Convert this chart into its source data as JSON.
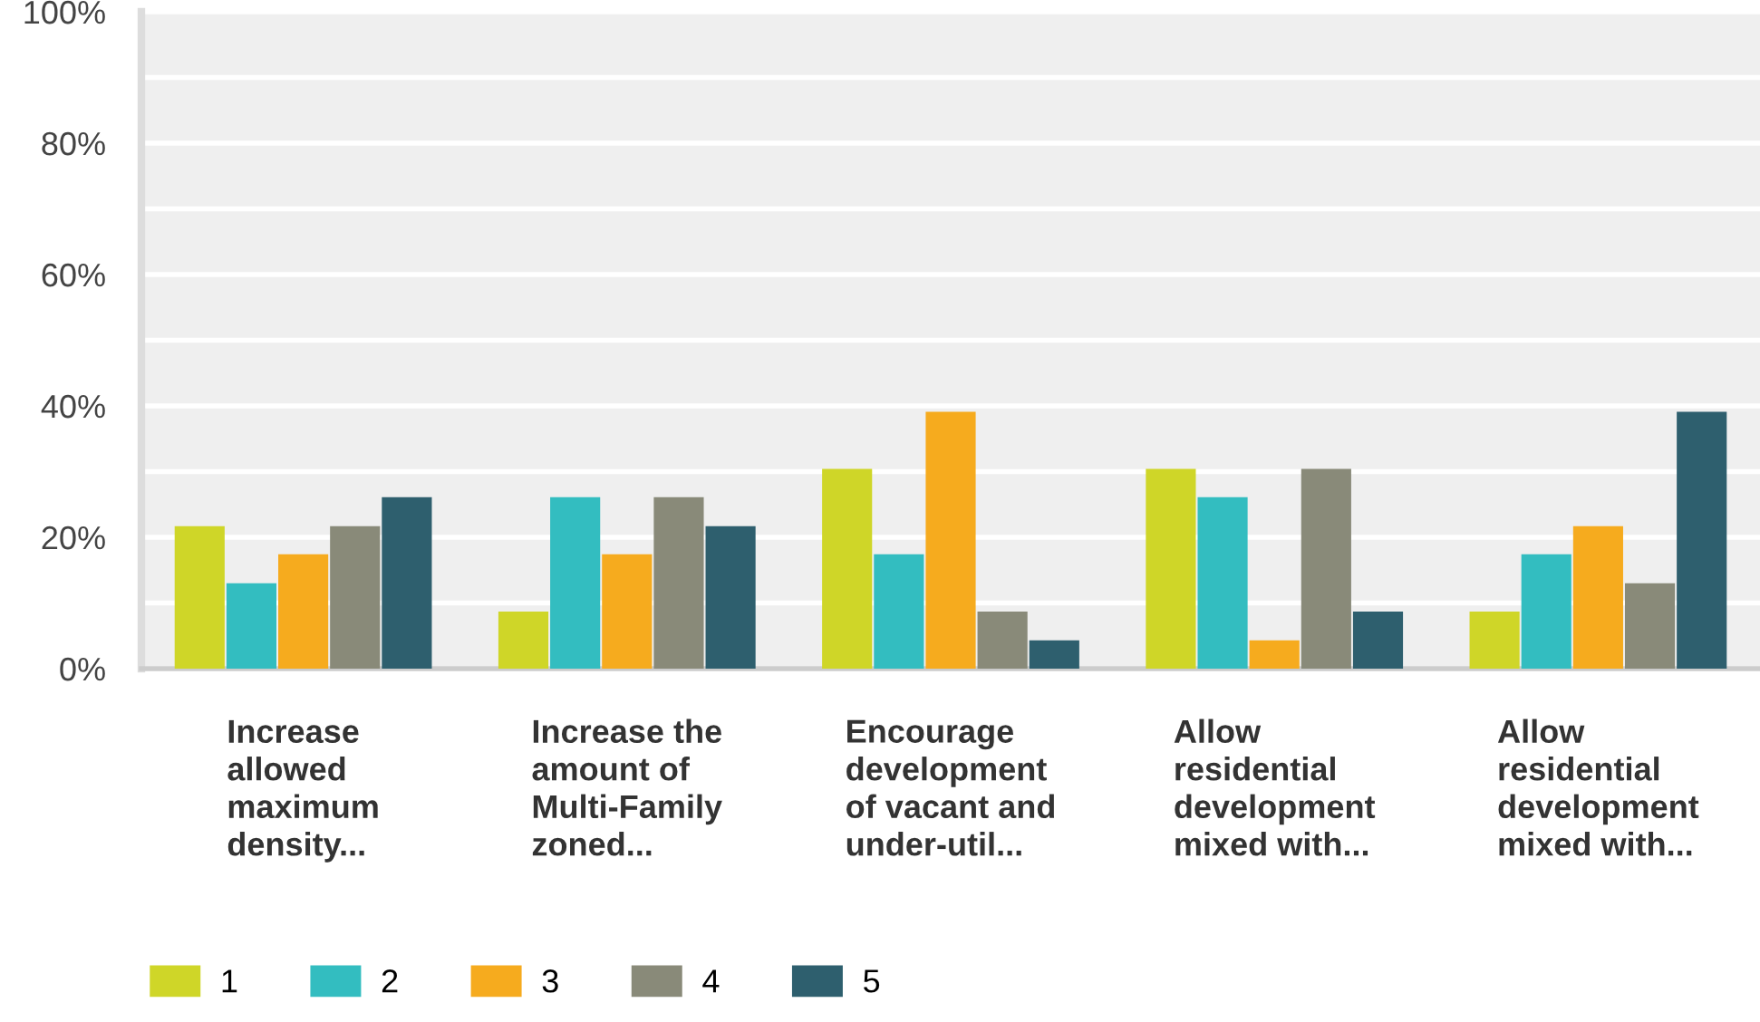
{
  "chart_data": {
    "type": "bar",
    "categories": [
      "Increase\nallowed\nmaximum\ndensity...",
      "Increase the\namount of\nMulti-Family\nzoned...",
      "Encourage\ndevelopment\nof vacant and\nunder-util...",
      "Allow\nresidential\ndevelopment\nmixed with...",
      "Allow\nresidential\ndevelopment\nmixed with..."
    ],
    "series": [
      {
        "name": "1",
        "color": "#cfd628",
        "values": [
          21.7,
          8.7,
          30.4,
          30.4,
          8.7
        ]
      },
      {
        "name": "2",
        "color": "#33bdc0",
        "values": [
          13.0,
          26.1,
          17.4,
          26.1,
          17.4
        ]
      },
      {
        "name": "3",
        "color": "#f6ab1e",
        "values": [
          17.4,
          17.4,
          39.1,
          4.3,
          21.7
        ]
      },
      {
        "name": "4",
        "color": "#898a79",
        "values": [
          21.7,
          26.1,
          8.7,
          30.4,
          13.0
        ]
      },
      {
        "name": "5",
        "color": "#2e5f6e",
        "values": [
          26.1,
          21.7,
          4.3,
          8.7,
          39.1
        ]
      }
    ],
    "ylim": [
      0,
      100
    ],
    "yticks": [
      {
        "value": 0,
        "label": "0%"
      },
      {
        "value": 10,
        "label": null
      },
      {
        "value": 20,
        "label": "20%"
      },
      {
        "value": 30,
        "label": null
      },
      {
        "value": 40,
        "label": "40%"
      },
      {
        "value": 50,
        "label": null
      },
      {
        "value": 60,
        "label": "60%"
      },
      {
        "value": 70,
        "label": null
      },
      {
        "value": 80,
        "label": "80%"
      },
      {
        "value": 90,
        "label": null
      },
      {
        "value": 100,
        "label": "100%"
      }
    ],
    "grid": "y",
    "legend": "bottom left"
  }
}
